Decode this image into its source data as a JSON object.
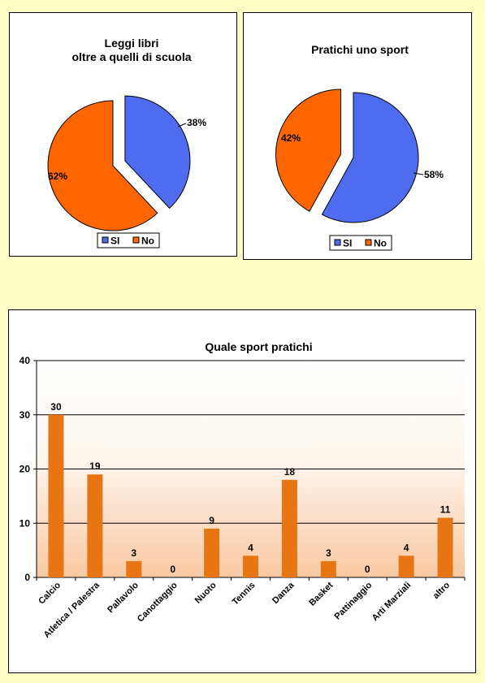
{
  "colors": {
    "si": "#4F6BF0",
    "no": "#FF6600",
    "bar": "#E87511",
    "bg": "#FFFFC6"
  },
  "chart_data": [
    {
      "type": "pie",
      "title_lines": [
        "Leggi libri",
        "oltre a quelli di scuola"
      ],
      "slices": [
        {
          "label": "SI",
          "value": 38,
          "display": "38%"
        },
        {
          "label": "No",
          "value": 62,
          "display": "62%"
        }
      ],
      "legend": [
        "SI",
        "No"
      ],
      "legend_position": "bottom"
    },
    {
      "type": "pie",
      "title_lines": [
        "Pratichi uno sport"
      ],
      "slices": [
        {
          "label": "SI",
          "value": 58,
          "display": "58%"
        },
        {
          "label": "No",
          "value": 42,
          "display": "42%"
        }
      ],
      "legend": [
        "SI",
        "No"
      ],
      "legend_position": "bottom"
    },
    {
      "type": "bar",
      "title": "Quale sport pratichi",
      "categories": [
        "Calcio",
        "Atletica / Palestra",
        "Pallavolo",
        "Canottaggio",
        "Nuoto",
        "Tennis",
        "Danza",
        "Basket",
        "Pattinaggio",
        "Arti Marziali",
        "altro"
      ],
      "values": [
        30,
        19,
        3,
        0,
        9,
        4,
        18,
        3,
        0,
        4,
        11
      ],
      "labels": [
        "30",
        "19",
        "3",
        "0",
        "9",
        "4",
        "18",
        "3",
        "0",
        "4",
        "11"
      ],
      "yticks": [
        0,
        10,
        20,
        30,
        40
      ],
      "ylim": [
        0,
        40
      ],
      "grid": true,
      "xlabel": "",
      "ylabel": ""
    }
  ]
}
